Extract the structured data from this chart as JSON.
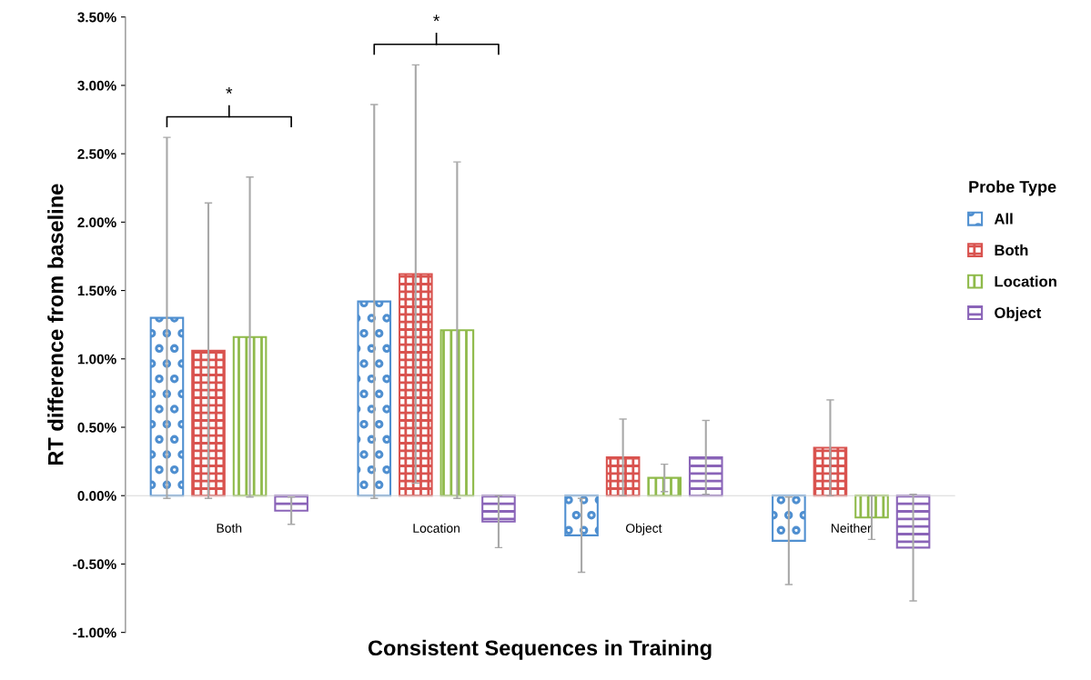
{
  "chart_data": {
    "type": "bar",
    "xlabel": "Consistent Sequences in Training",
    "ylabel": "RT difference from baseline",
    "legend_title": "Probe Type",
    "categories": [
      "Both",
      "Location",
      "Object",
      "Neither"
    ],
    "series": [
      {
        "name": "All",
        "color": "#4f8fd0",
        "values": [
          1.3,
          1.42,
          -0.29,
          -0.33
        ],
        "errors": [
          1.32,
          1.44,
          0.27,
          0.32
        ]
      },
      {
        "name": "Both",
        "color": "#d9534f",
        "values": [
          1.06,
          1.62,
          0.28,
          0.35
        ],
        "errors": [
          1.08,
          1.53,
          0.28,
          0.35
        ]
      },
      {
        "name": "Location",
        "color": "#8fba4a",
        "values": [
          1.16,
          1.21,
          0.13,
          -0.16
        ],
        "errors": [
          1.17,
          1.23,
          0.1,
          0.16
        ]
      },
      {
        "name": "Object",
        "color": "#8a64b8",
        "values": [
          -0.11,
          -0.19,
          0.28,
          -0.38
        ],
        "errors": [
          0.1,
          0.19,
          0.27,
          0.39
        ]
      }
    ],
    "ylim": [
      -1.0,
      3.5
    ],
    "yticks": [
      {
        "value": -1.0,
        "label": "-1.00%"
      },
      {
        "value": -0.5,
        "label": "-0.50%"
      },
      {
        "value": 0,
        "label": "0.00%"
      },
      {
        "value": 0.5,
        "label": "0.50%"
      },
      {
        "value": 1.0,
        "label": "1.00%"
      },
      {
        "value": 1.5,
        "label": "1.50%"
      },
      {
        "value": 2.0,
        "label": "2.00%"
      },
      {
        "value": 2.5,
        "label": "2.50%"
      },
      {
        "value": 3.0,
        "label": "3.00%"
      },
      {
        "value": 3.5,
        "label": "3.50%"
      }
    ],
    "annotations": [
      "*",
      "*"
    ],
    "legend": "right",
    "grid": false
  }
}
